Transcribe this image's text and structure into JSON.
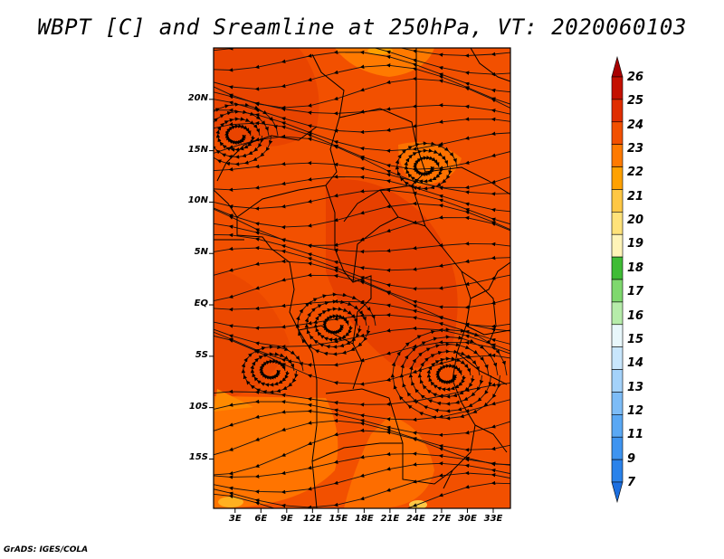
{
  "title": "WBPT [C] and Sreamline at 250hPa, VT: 2020060103",
  "credit": "GrADS: IGES/COLA",
  "map": {
    "lat_ticks": [
      {
        "label": "20N",
        "lat": 20
      },
      {
        "label": "15N",
        "lat": 15
      },
      {
        "label": "10N",
        "lat": 10
      },
      {
        "label": "5N",
        "lat": 5
      },
      {
        "label": "EQ",
        "lat": 0
      },
      {
        "label": "5S",
        "lat": -5
      },
      {
        "label": "10S",
        "lat": -10
      },
      {
        "label": "15S",
        "lat": -15
      }
    ],
    "lon_ticks": [
      {
        "label": "3E",
        "lon": 3
      },
      {
        "label": "6E",
        "lon": 6
      },
      {
        "label": "9E",
        "lon": 9
      },
      {
        "label": "12E",
        "lon": 12
      },
      {
        "label": "15E",
        "lon": 15
      },
      {
        "label": "18E",
        "lon": 18
      },
      {
        "label": "21E",
        "lon": 21
      },
      {
        "label": "24E",
        "lon": 24
      },
      {
        "label": "27E",
        "lon": 27
      },
      {
        "label": "30E",
        "lon": 30
      },
      {
        "label": "33E",
        "lon": 33
      }
    ],
    "lon_range": [
      0.5,
      35
    ],
    "lat_range": [
      -19.8,
      25
    ]
  },
  "colorbar": {
    "levels": [
      "7",
      "9",
      "11",
      "12",
      "13",
      "14",
      "15",
      "16",
      "17",
      "18",
      "19",
      "20",
      "21",
      "22",
      "23",
      "24",
      "25",
      "26"
    ],
    "colors": [
      "#1c6fe0",
      "#2a82ea",
      "#3e94f0",
      "#5aa8f4",
      "#7dbcf7",
      "#a4d2fa",
      "#c8e6fc",
      "#e8f7fb",
      "#b6ecaa",
      "#7fd86e",
      "#3fbc36",
      "#fff4b8",
      "#ffe27a",
      "#ffc744",
      "#ffa100",
      "#ff7a00",
      "#f25000",
      "#e02e00",
      "#c41000",
      "#a80000"
    ]
  }
}
